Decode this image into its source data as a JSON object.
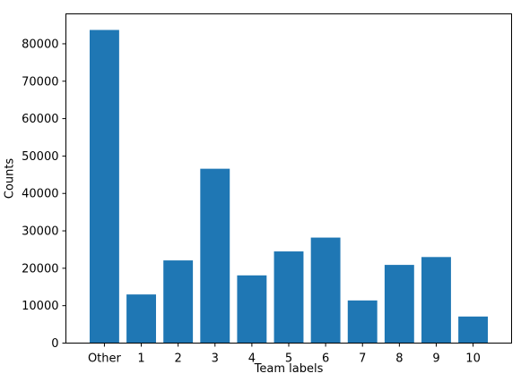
{
  "chart_data": {
    "type": "bar",
    "title": "",
    "xlabel": "Team labels",
    "ylabel": "Counts",
    "categories": [
      "Other",
      "1",
      "2",
      "3",
      "4",
      "5",
      "6",
      "7",
      "8",
      "9",
      "10"
    ],
    "values": [
      83700,
      13000,
      22100,
      46600,
      18100,
      24500,
      28200,
      11400,
      20900,
      23000,
      7100
    ],
    "ylim": [
      0,
      88000
    ],
    "yticks": [
      0,
      10000,
      20000,
      30000,
      40000,
      50000,
      60000,
      70000,
      80000
    ],
    "grid": false,
    "legend": "none",
    "colors": {
      "bar": "#1f77b4",
      "axis": "#000000",
      "background": "#ffffff"
    }
  }
}
